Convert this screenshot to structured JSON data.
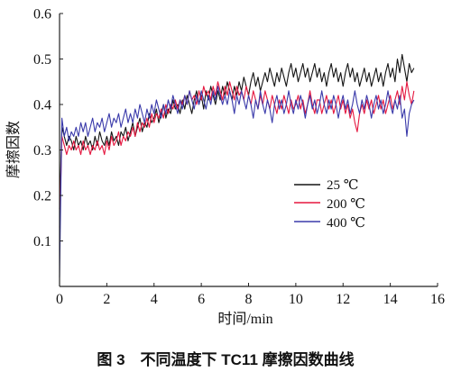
{
  "chart_data": {
    "type": "line",
    "xlabel": "时间/min",
    "ylabel": "摩擦因数",
    "caption": "图 3　不同温度下 TC11 摩擦因数曲线",
    "xlim": [
      0,
      16
    ],
    "ylim": [
      0,
      0.6
    ],
    "xticks": [
      0,
      2,
      4,
      6,
      8,
      10,
      12,
      14,
      16
    ],
    "yticks": [
      0.1,
      0.2,
      0.3,
      0.4,
      0.5,
      0.6
    ],
    "grid": false,
    "legend_position": "lower-right",
    "x": [
      0,
      0.1,
      0.2,
      0.3,
      0.4,
      0.5,
      0.6,
      0.7,
      0.8,
      0.9,
      1,
      1.1,
      1.2,
      1.3,
      1.4,
      1.5,
      1.6,
      1.7,
      1.8,
      1.9,
      2,
      2.1,
      2.2,
      2.3,
      2.4,
      2.5,
      2.6,
      2.7,
      2.8,
      2.9,
      3,
      3.1,
      3.2,
      3.3,
      3.4,
      3.5,
      3.6,
      3.7,
      3.8,
      3.9,
      4,
      4.1,
      4.2,
      4.3,
      4.4,
      4.5,
      4.6,
      4.7,
      4.8,
      4.9,
      5,
      5.1,
      5.2,
      5.3,
      5.4,
      5.5,
      5.6,
      5.7,
      5.8,
      5.9,
      6,
      6.1,
      6.2,
      6.3,
      6.4,
      6.5,
      6.6,
      6.7,
      6.8,
      6.9,
      7,
      7.1,
      7.2,
      7.3,
      7.4,
      7.5,
      7.6,
      7.7,
      7.8,
      7.9,
      8,
      8.1,
      8.2,
      8.3,
      8.4,
      8.5,
      8.6,
      8.7,
      8.8,
      8.9,
      9,
      9.1,
      9.2,
      9.3,
      9.4,
      9.5,
      9.6,
      9.7,
      9.8,
      9.9,
      10,
      10.1,
      10.2,
      10.3,
      10.4,
      10.5,
      10.6,
      10.7,
      10.8,
      10.9,
      11,
      11.1,
      11.2,
      11.3,
      11.4,
      11.5,
      11.6,
      11.7,
      11.8,
      11.9,
      12,
      12.1,
      12.2,
      12.3,
      12.4,
      12.5,
      12.6,
      12.7,
      12.8,
      12.9,
      13,
      13.1,
      13.2,
      13.3,
      13.4,
      13.5,
      13.6,
      13.7,
      13.8,
      13.9,
      14,
      14.1,
      14.2,
      14.3,
      14.4,
      14.5,
      14.6,
      14.7,
      14.8,
      14.9,
      15
    ],
    "series": [
      {
        "name": "25 ℃",
        "color": "#141414",
        "values": [
          0.17,
          0.35,
          0.33,
          0.31,
          0.33,
          0.32,
          0.3,
          0.33,
          0.31,
          0.32,
          0.3,
          0.33,
          0.31,
          0.32,
          0.3,
          0.33,
          0.31,
          0.34,
          0.32,
          0.31,
          0.33,
          0.31,
          0.34,
          0.32,
          0.33,
          0.31,
          0.34,
          0.33,
          0.35,
          0.32,
          0.34,
          0.36,
          0.33,
          0.35,
          0.37,
          0.34,
          0.36,
          0.35,
          0.38,
          0.36,
          0.37,
          0.39,
          0.36,
          0.38,
          0.4,
          0.37,
          0.39,
          0.38,
          0.41,
          0.39,
          0.4,
          0.38,
          0.41,
          0.39,
          0.42,
          0.4,
          0.38,
          0.41,
          0.43,
          0.4,
          0.42,
          0.39,
          0.43,
          0.41,
          0.44,
          0.42,
          0.4,
          0.43,
          0.41,
          0.44,
          0.42,
          0.45,
          0.43,
          0.41,
          0.44,
          0.42,
          0.45,
          0.43,
          0.46,
          0.44,
          0.42,
          0.45,
          0.47,
          0.44,
          0.46,
          0.43,
          0.45,
          0.47,
          0.45,
          0.48,
          0.46,
          0.44,
          0.47,
          0.45,
          0.48,
          0.46,
          0.44,
          0.47,
          0.49,
          0.46,
          0.48,
          0.45,
          0.47,
          0.49,
          0.46,
          0.48,
          0.45,
          0.47,
          0.49,
          0.46,
          0.48,
          0.45,
          0.47,
          0.44,
          0.47,
          0.49,
          0.46,
          0.48,
          0.45,
          0.47,
          0.44,
          0.47,
          0.49,
          0.46,
          0.48,
          0.45,
          0.47,
          0.44,
          0.46,
          0.48,
          0.45,
          0.47,
          0.44,
          0.46,
          0.48,
          0.45,
          0.47,
          0.44,
          0.47,
          0.49,
          0.46,
          0.48,
          0.45,
          0.5,
          0.47,
          0.51,
          0.48,
          0.45,
          0.49,
          0.47,
          0.48
        ]
      },
      {
        "name": "200 ℃",
        "color": "#e5173f",
        "values": [
          0.13,
          0.33,
          0.31,
          0.29,
          0.31,
          0.3,
          0.32,
          0.3,
          0.31,
          0.29,
          0.32,
          0.3,
          0.31,
          0.29,
          0.31,
          0.3,
          0.32,
          0.3,
          0.31,
          0.29,
          0.32,
          0.3,
          0.33,
          0.31,
          0.32,
          0.34,
          0.31,
          0.33,
          0.32,
          0.34,
          0.33,
          0.35,
          0.33,
          0.36,
          0.34,
          0.36,
          0.35,
          0.37,
          0.35,
          0.38,
          0.36,
          0.38,
          0.37,
          0.39,
          0.37,
          0.4,
          0.38,
          0.4,
          0.39,
          0.41,
          0.39,
          0.41,
          0.4,
          0.42,
          0.4,
          0.43,
          0.41,
          0.42,
          0.4,
          0.43,
          0.41,
          0.44,
          0.42,
          0.43,
          0.41,
          0.44,
          0.42,
          0.45,
          0.43,
          0.41,
          0.44,
          0.42,
          0.45,
          0.43,
          0.41,
          0.44,
          0.42,
          0.43,
          0.41,
          0.44,
          0.42,
          0.4,
          0.43,
          0.41,
          0.39,
          0.42,
          0.4,
          0.43,
          0.41,
          0.39,
          0.42,
          0.4,
          0.38,
          0.41,
          0.39,
          0.42,
          0.4,
          0.38,
          0.41,
          0.39,
          0.4,
          0.42,
          0.39,
          0.41,
          0.38,
          0.4,
          0.43,
          0.4,
          0.38,
          0.41,
          0.41,
          0.38,
          0.4,
          0.42,
          0.39,
          0.41,
          0.38,
          0.4,
          0.42,
          0.39,
          0.41,
          0.38,
          0.4,
          0.37,
          0.39,
          0.36,
          0.34,
          0.38,
          0.4,
          0.38,
          0.41,
          0.39,
          0.41,
          0.38,
          0.4,
          0.42,
          0.39,
          0.41,
          0.38,
          0.4,
          0.42,
          0.39,
          0.41,
          0.43,
          0.4,
          0.44,
          0.41,
          0.45,
          0.42,
          0.4,
          0.43
        ]
      },
      {
        "name": "400 ℃",
        "color": "#3a3aaa",
        "values": [
          0.02,
          0.37,
          0.33,
          0.35,
          0.32,
          0.34,
          0.33,
          0.35,
          0.33,
          0.36,
          0.34,
          0.36,
          0.33,
          0.35,
          0.37,
          0.34,
          0.36,
          0.35,
          0.37,
          0.34,
          0.36,
          0.38,
          0.35,
          0.37,
          0.36,
          0.38,
          0.35,
          0.37,
          0.39,
          0.36,
          0.38,
          0.36,
          0.39,
          0.37,
          0.4,
          0.38,
          0.36,
          0.39,
          0.37,
          0.4,
          0.38,
          0.41,
          0.39,
          0.37,
          0.4,
          0.38,
          0.41,
          0.39,
          0.42,
          0.4,
          0.38,
          0.41,
          0.39,
          0.42,
          0.4,
          0.43,
          0.41,
          0.39,
          0.42,
          0.4,
          0.43,
          0.41,
          0.39,
          0.42,
          0.4,
          0.43,
          0.41,
          0.44,
          0.42,
          0.4,
          0.42,
          0.4,
          0.43,
          0.41,
          0.38,
          0.42,
          0.4,
          0.43,
          0.41,
          0.39,
          0.42,
          0.4,
          0.37,
          0.41,
          0.39,
          0.43,
          0.4,
          0.38,
          0.41,
          0.39,
          0.36,
          0.4,
          0.42,
          0.39,
          0.41,
          0.38,
          0.4,
          0.43,
          0.4,
          0.38,
          0.41,
          0.39,
          0.42,
          0.4,
          0.37,
          0.4,
          0.42,
          0.39,
          0.41,
          0.38,
          0.4,
          0.43,
          0.4,
          0.38,
          0.41,
          0.39,
          0.42,
          0.4,
          0.37,
          0.4,
          0.42,
          0.39,
          0.41,
          0.38,
          0.4,
          0.43,
          0.4,
          0.38,
          0.41,
          0.39,
          0.42,
          0.4,
          0.37,
          0.4,
          0.42,
          0.39,
          0.41,
          0.38,
          0.4,
          0.43,
          0.4,
          0.38,
          0.41,
          0.39,
          0.42,
          0.37,
          0.39,
          0.33,
          0.38,
          0.4,
          0.41
        ]
      }
    ]
  }
}
